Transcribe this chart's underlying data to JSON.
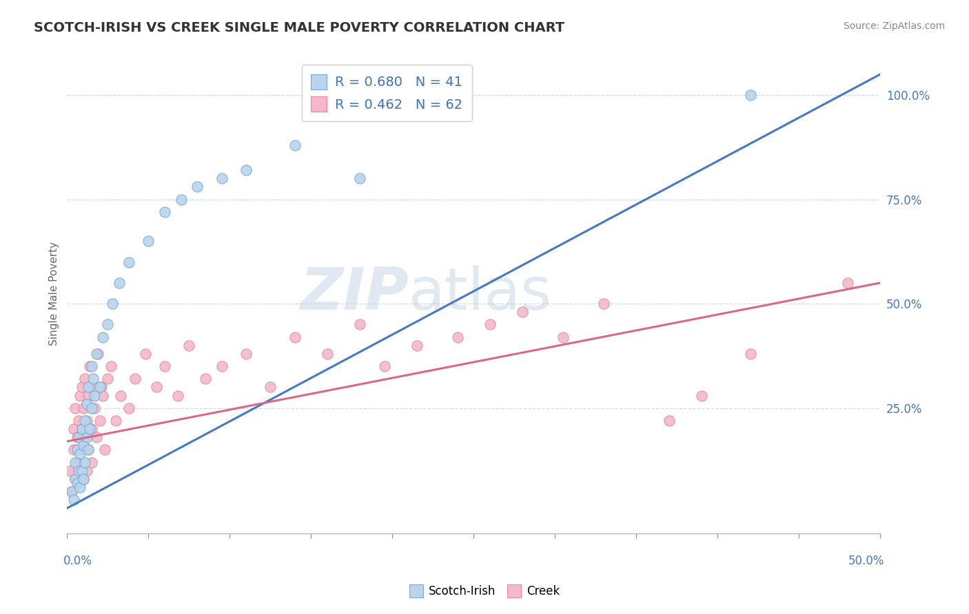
{
  "title": "SCOTCH-IRISH VS CREEK SINGLE MALE POVERTY CORRELATION CHART",
  "source": "Source: ZipAtlas.com",
  "ylabel": "Single Male Poverty",
  "yticks": [
    0.0,
    0.25,
    0.5,
    0.75,
    1.0
  ],
  "ytick_labels": [
    "",
    "25.0%",
    "50.0%",
    "75.0%",
    "100.0%"
  ],
  "xlim": [
    0.0,
    0.5
  ],
  "ylim": [
    -0.05,
    1.1
  ],
  "legend1_label": "R = 0.680   N = 41",
  "legend2_label": "R = 0.462   N = 62",
  "scotch_irish_color": "#b8d4ee",
  "creek_color": "#f5b8c8",
  "scotch_irish_edge_color": "#7aaad0",
  "creek_edge_color": "#e88aa0",
  "scotch_irish_line_color": "#4477cc",
  "creek_line_color": "#dd6688",
  "watermark_zip": "ZIP",
  "watermark_atlas": "atlas",
  "si_line_x0": 0.0,
  "si_line_y0": 0.01,
  "si_line_x1": 0.5,
  "si_line_y1": 1.05,
  "ck_line_x0": 0.0,
  "ck_line_y0": 0.17,
  "ck_line_x1": 0.5,
  "ck_line_y1": 0.55,
  "scotch_irish_x": [
    0.003,
    0.004,
    0.005,
    0.005,
    0.006,
    0.006,
    0.007,
    0.007,
    0.008,
    0.008,
    0.009,
    0.009,
    0.01,
    0.01,
    0.011,
    0.011,
    0.012,
    0.012,
    0.013,
    0.013,
    0.014,
    0.015,
    0.015,
    0.016,
    0.017,
    0.018,
    0.02,
    0.022,
    0.025,
    0.028,
    0.032,
    0.038,
    0.05,
    0.06,
    0.07,
    0.08,
    0.095,
    0.11,
    0.14,
    0.18,
    0.42
  ],
  "scotch_irish_y": [
    0.05,
    0.03,
    0.08,
    0.12,
    0.07,
    0.15,
    0.1,
    0.18,
    0.06,
    0.14,
    0.1,
    0.2,
    0.08,
    0.16,
    0.12,
    0.22,
    0.18,
    0.26,
    0.15,
    0.3,
    0.2,
    0.25,
    0.35,
    0.32,
    0.28,
    0.38,
    0.3,
    0.42,
    0.45,
    0.5,
    0.55,
    0.6,
    0.65,
    0.72,
    0.75,
    0.78,
    0.8,
    0.82,
    0.88,
    0.8,
    1.0
  ],
  "creek_x": [
    0.002,
    0.003,
    0.004,
    0.004,
    0.005,
    0.005,
    0.006,
    0.006,
    0.007,
    0.007,
    0.008,
    0.008,
    0.009,
    0.009,
    0.01,
    0.01,
    0.011,
    0.011,
    0.012,
    0.012,
    0.013,
    0.013,
    0.014,
    0.015,
    0.015,
    0.016,
    0.017,
    0.018,
    0.019,
    0.02,
    0.021,
    0.022,
    0.023,
    0.025,
    0.027,
    0.03,
    0.033,
    0.038,
    0.042,
    0.048,
    0.055,
    0.06,
    0.068,
    0.075,
    0.085,
    0.095,
    0.11,
    0.125,
    0.14,
    0.16,
    0.18,
    0.195,
    0.215,
    0.24,
    0.26,
    0.28,
    0.305,
    0.33,
    0.37,
    0.39,
    0.42,
    0.48
  ],
  "creek_y": [
    0.1,
    0.05,
    0.15,
    0.2,
    0.08,
    0.25,
    0.12,
    0.18,
    0.22,
    0.1,
    0.28,
    0.15,
    0.2,
    0.3,
    0.08,
    0.25,
    0.18,
    0.32,
    0.1,
    0.22,
    0.28,
    0.15,
    0.35,
    0.2,
    0.12,
    0.3,
    0.25,
    0.18,
    0.38,
    0.22,
    0.3,
    0.28,
    0.15,
    0.32,
    0.35,
    0.22,
    0.28,
    0.25,
    0.32,
    0.38,
    0.3,
    0.35,
    0.28,
    0.4,
    0.32,
    0.35,
    0.38,
    0.3,
    0.42,
    0.38,
    0.45,
    0.35,
    0.4,
    0.42,
    0.45,
    0.48,
    0.42,
    0.5,
    0.22,
    0.28,
    0.38,
    0.55
  ]
}
